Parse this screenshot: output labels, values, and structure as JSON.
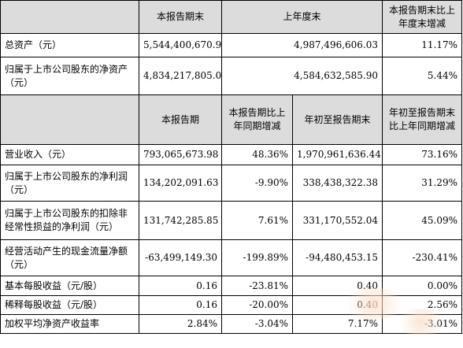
{
  "table1": {
    "headers": [
      "本报告期末",
      "上年度末",
      "本报告期末比上年度末增减"
    ],
    "rows": [
      {
        "label": "总资产（元）",
        "values": [
          "5,544,400,670.91",
          "4,987,496,606.03",
          "11.17%"
        ]
      },
      {
        "label": "归属于上市公司股东的净资产（元）",
        "values": [
          "4,834,217,805.05",
          "4,584,632,585.90",
          "5.44%"
        ]
      }
    ]
  },
  "table2": {
    "headers": [
      "本报告期",
      "本报告期比上年同期增减",
      "年初至报告期末",
      "年初至报告期末比上年同期增减"
    ],
    "rows": [
      {
        "label": "营业收入（元）",
        "values": [
          "793,065,673.98",
          "48.36%",
          "1,970,961,636.44",
          "73.16%"
        ]
      },
      {
        "label": "归属于上市公司股东的净利润（元）",
        "values": [
          "134,202,091.63",
          "-9.90%",
          "338,438,322.38",
          "31.29%"
        ]
      },
      {
        "label": "归属于上市公司股东的扣除非经常性损益的净利润（元）",
        "values": [
          "131,742,285.85",
          "7.61%",
          "331,170,552.04",
          "45.09%"
        ]
      },
      {
        "label": "经营活动产生的现金流量净额（元）",
        "values": [
          "-63,499,149.30",
          "-199.89%",
          "-94,480,453.15",
          "-230.41%"
        ]
      },
      {
        "label": "基本每股收益（元/股）",
        "values": [
          "0.16",
          "-23.81%",
          "0.40",
          "0.00%"
        ]
      },
      {
        "label": "稀释每股收益（元/股）",
        "values": [
          "0.16",
          "-20.00%",
          "0.40",
          "2.56%"
        ]
      },
      {
        "label": "加权平均净资产收益率",
        "values": [
          "2.84%",
          "-3.04%",
          "7.17%",
          "-3.01%"
        ]
      }
    ]
  }
}
